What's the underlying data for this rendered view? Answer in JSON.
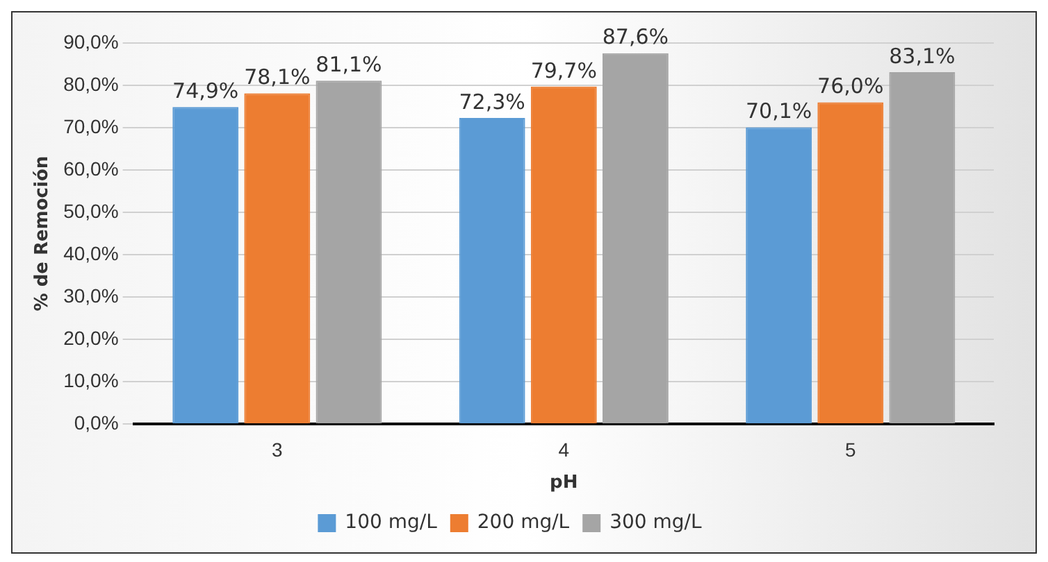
{
  "chart_data": {
    "type": "bar",
    "xlabel": "pH",
    "ylabel": "% de Remoción",
    "categories": [
      "3",
      "4",
      "5"
    ],
    "series": [
      {
        "name": "100 mg/L",
        "color": "#5b9bd5",
        "values": [
          74.9,
          72.3,
          70.1
        ],
        "value_labels": [
          "74,9%",
          "72,3%",
          "70,1%"
        ]
      },
      {
        "name": "200 mg/L",
        "color": "#ed7d31",
        "values": [
          78.1,
          79.7,
          76.0
        ],
        "value_labels": [
          "78,1%",
          "79,7%",
          "76,0%"
        ]
      },
      {
        "name": "300 mg/L",
        "color": "#a5a5a5",
        "values": [
          81.1,
          87.6,
          83.1
        ],
        "value_labels": [
          "81,1%",
          "87,6%",
          "83,1%"
        ]
      }
    ],
    "ylim": [
      0,
      90
    ],
    "yticks": [
      {
        "value": 0,
        "label": "0,0%"
      },
      {
        "value": 10,
        "label": "10,0%"
      },
      {
        "value": 20,
        "label": "20,0%"
      },
      {
        "value": 30,
        "label": "30,0%"
      },
      {
        "value": 40,
        "label": "40,0%"
      },
      {
        "value": 50,
        "label": "50,0%"
      },
      {
        "value": 60,
        "label": "60,0%"
      },
      {
        "value": 70,
        "label": "70,0%"
      },
      {
        "value": 80,
        "label": "80,0%"
      },
      {
        "value": 90,
        "label": "90,0%"
      }
    ],
    "grid": "y",
    "legend": "bottom"
  }
}
